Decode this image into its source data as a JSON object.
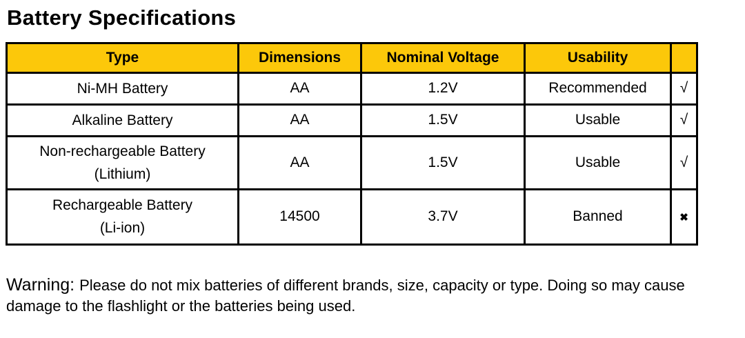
{
  "title": "Battery Specifications",
  "colors": {
    "header_bg": "#FCC80A",
    "border": "#000000",
    "text": "#000000",
    "page_bg": "#FFFFFF"
  },
  "table": {
    "headers": {
      "type": "Type",
      "dimensions": "Dimensions",
      "voltage": "Nominal Voltage",
      "usability": "Usability",
      "mark": ""
    },
    "rows": [
      {
        "type": "Ni-MH Battery",
        "type_sub": "",
        "dimensions": "AA",
        "voltage": "1.2V",
        "usability": "Recommended",
        "mark": "√"
      },
      {
        "type": "Alkaline Battery",
        "type_sub": "",
        "dimensions": "AA",
        "voltage": "1.5V",
        "usability": "Usable",
        "mark": "√"
      },
      {
        "type": "Non-rechargeable Battery",
        "type_sub": "(Lithium)",
        "dimensions": "AA",
        "voltage": "1.5V",
        "usability": "Usable",
        "mark": "√"
      },
      {
        "type": "Rechargeable Battery",
        "type_sub": "(Li-ion)",
        "dimensions": "14500",
        "voltage": "3.7V",
        "usability": "Banned",
        "mark": "✖"
      }
    ]
  },
  "warning": {
    "label": "Warning:",
    "text": "Please do not mix batteries of different brands, size, capacity or type. Doing so may cause damage to the flashlight or the batteries being used."
  }
}
